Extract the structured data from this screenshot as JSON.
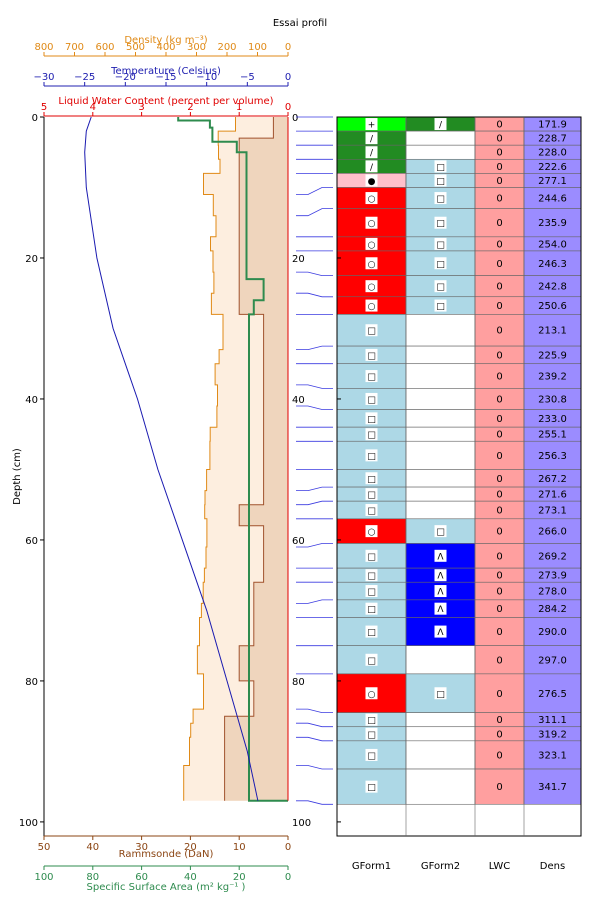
{
  "chart_data": {
    "type": "line",
    "title": "Essai profil",
    "ylabel": "Depth (cm)",
    "ylim": [
      0,
      102
    ],
    "yticks": [
      0,
      20,
      40,
      60,
      80,
      100
    ],
    "colors": {
      "density_axis": "#e08a17",
      "temperature_axis": "#2020b0",
      "lwc_axis": "#e00000",
      "rammsonde_axis": "#8b4513",
      "ssa_axis": "#2e8b4e",
      "rammsonde_fill": "#efd5bd",
      "density_fill": "#fdeedf",
      "density_line": "#e08a17",
      "rammsonde_line": "#a0522d",
      "ssa_line": "#2e8b4e",
      "temp_line": "#1a1ab0",
      "lwc_line": "#e00000",
      "gf1_green": "#00ff00",
      "gf1_darkgreen": "#228b22",
      "gf1_pink": "#ffc0cb",
      "gf1_red": "#ff0000",
      "gf_blue": "#add8e6",
      "gf2_navy": "#0000ff",
      "lwc_cell": "#ff9f9f",
      "dens_cell": "#9b8cff"
    },
    "axes": {
      "density": {
        "label": "Density (kg m⁻³)",
        "range": [
          800,
          0
        ],
        "ticks": [
          "800",
          "700",
          "600",
          "500",
          "400",
          "300",
          "200",
          "100",
          "0"
        ]
      },
      "temperature": {
        "label": "Temperature (Celsius)",
        "range": [
          -30,
          0
        ],
        "ticks": [
          "−30",
          "−25",
          "−20",
          "−15",
          "−10",
          "−5",
          "0"
        ]
      },
      "lwc": {
        "label": "Liquid Water Content (percent per volume)",
        "range": [
          5,
          0
        ],
        "ticks": [
          "5",
          "4",
          "3",
          "2",
          "1",
          "0"
        ]
      },
      "rammsonde": {
        "label": "Rammsonde (DaN)",
        "range": [
          50,
          0
        ],
        "ticks": [
          "50",
          "40",
          "30",
          "20",
          "10",
          "0"
        ]
      },
      "ssa": {
        "label": "Specific Surface Area (m²  kg⁻¹ )",
        "range": [
          100,
          0
        ],
        "ticks": [
          "100",
          "80",
          "60",
          "40",
          "20",
          "0"
        ]
      }
    },
    "rammsonde_profile": [
      {
        "top": 0,
        "bottom": 3,
        "value": 3
      },
      {
        "top": 3,
        "bottom": 28,
        "value": 10
      },
      {
        "top": 28,
        "bottom": 55,
        "value": 5
      },
      {
        "top": 55,
        "bottom": 58,
        "value": 10
      },
      {
        "top": 58,
        "bottom": 66,
        "value": 5
      },
      {
        "top": 66,
        "bottom": 75,
        "value": 7
      },
      {
        "top": 75,
        "bottom": 80,
        "value": 10
      },
      {
        "top": 80,
        "bottom": 85,
        "value": 7
      },
      {
        "top": 85,
        "bottom": 97,
        "value": 13
      }
    ],
    "density_profile": [
      {
        "top": 0,
        "bottom": 2,
        "value": 172
      },
      {
        "top": 2,
        "bottom": 4,
        "value": 229
      },
      {
        "top": 4,
        "bottom": 6,
        "value": 228
      },
      {
        "top": 6,
        "bottom": 8,
        "value": 223
      },
      {
        "top": 8,
        "bottom": 11,
        "value": 277
      },
      {
        "top": 11,
        "bottom": 14,
        "value": 245
      },
      {
        "top": 14,
        "bottom": 17,
        "value": 236
      },
      {
        "top": 17,
        "bottom": 19,
        "value": 254
      },
      {
        "top": 19,
        "bottom": 22,
        "value": 246
      },
      {
        "top": 22,
        "bottom": 25,
        "value": 243
      },
      {
        "top": 25,
        "bottom": 28,
        "value": 251
      },
      {
        "top": 28,
        "bottom": 33,
        "value": 213
      },
      {
        "top": 33,
        "bottom": 35,
        "value": 226
      },
      {
        "top": 35,
        "bottom": 38,
        "value": 239
      },
      {
        "top": 38,
        "bottom": 41,
        "value": 231
      },
      {
        "top": 41,
        "bottom": 44,
        "value": 233
      },
      {
        "top": 44,
        "bottom": 46,
        "value": 255
      },
      {
        "top": 46,
        "bottom": 50,
        "value": 256
      },
      {
        "top": 50,
        "bottom": 53,
        "value": 267
      },
      {
        "top": 53,
        "bottom": 55,
        "value": 272
      },
      {
        "top": 55,
        "bottom": 57,
        "value": 273
      },
      {
        "top": 57,
        "bottom": 61,
        "value": 266
      },
      {
        "top": 61,
        "bottom": 64,
        "value": 269
      },
      {
        "top": 64,
        "bottom": 66,
        "value": 274
      },
      {
        "top": 66,
        "bottom": 69,
        "value": 278
      },
      {
        "top": 69,
        "bottom": 71,
        "value": 284
      },
      {
        "top": 71,
        "bottom": 75,
        "value": 290
      },
      {
        "top": 75,
        "bottom": 79,
        "value": 297
      },
      {
        "top": 79,
        "bottom": 84,
        "value": 277
      },
      {
        "top": 84,
        "bottom": 86,
        "value": 311
      },
      {
        "top": 86,
        "bottom": 88,
        "value": 319
      },
      {
        "top": 88,
        "bottom": 92,
        "value": 323
      },
      {
        "top": 92,
        "bottom": 97,
        "value": 342
      }
    ],
    "ssa_profile": [
      {
        "top": 0,
        "bottom": 0.5,
        "value": 45
      },
      {
        "top": 0.5,
        "bottom": 1.5,
        "value": 32
      },
      {
        "top": 1.5,
        "bottom": 3.5,
        "value": 31
      },
      {
        "top": 3.5,
        "bottom": 5,
        "value": 21
      },
      {
        "top": 5,
        "bottom": 23,
        "value": 17
      },
      {
        "top": 23,
        "bottom": 26,
        "value": 10
      },
      {
        "top": 26,
        "bottom": 28,
        "value": 14
      },
      {
        "top": 28,
        "bottom": 97,
        "value": 16
      }
    ],
    "temperature_profile": [
      {
        "depth": 0,
        "value": -24.2
      },
      {
        "depth": 2,
        "value": -24.8
      },
      {
        "depth": 5,
        "value": -25.0
      },
      {
        "depth": 10,
        "value": -24.8
      },
      {
        "depth": 20,
        "value": -23.5
      },
      {
        "depth": 30,
        "value": -21.5
      },
      {
        "depth": 40,
        "value": -18.5
      },
      {
        "depth": 50,
        "value": -16.0
      },
      {
        "depth": 60,
        "value": -13.0
      },
      {
        "depth": 70,
        "value": -10.0
      },
      {
        "depth": 80,
        "value": -7.5
      },
      {
        "depth": 90,
        "value": -5.0
      },
      {
        "depth": 97,
        "value": -3.7
      }
    ],
    "lwc_profile": [
      {
        "top": 0,
        "bottom": 97,
        "value": 0
      }
    ],
    "table": {
      "headers": [
        "GForm1",
        "GForm2",
        "LWC",
        "Dens"
      ],
      "depth_ticks": [
        "0",
        "20",
        "40",
        "60",
        "80",
        "100"
      ],
      "rows": [
        {
          "top": 0,
          "bottom": 2,
          "gf1": "+",
          "gf1_color": "gf1_green",
          "gf2": "/",
          "gf2_color": "gf1_darkgreen",
          "lwc": "0",
          "dens": "171.9"
        },
        {
          "top": 2,
          "bottom": 4,
          "gf1": "/",
          "gf1_color": "gf1_darkgreen",
          "gf2": "",
          "gf2_color": "white",
          "lwc": "0",
          "dens": "228.7"
        },
        {
          "top": 4,
          "bottom": 6,
          "gf1": "/",
          "gf1_color": "gf1_darkgreen",
          "gf2": "",
          "gf2_color": "white",
          "lwc": "0",
          "dens": "228.0"
        },
        {
          "top": 6,
          "bottom": 8,
          "gf1": "/",
          "gf1_color": "gf1_darkgreen",
          "gf2": "□",
          "gf2_color": "gf_blue",
          "lwc": "0",
          "dens": "222.6"
        },
        {
          "top": 8,
          "bottom": 10,
          "gf1": "●",
          "gf1_color": "gf1_pink",
          "gf2": "□",
          "gf2_color": "gf_blue",
          "lwc": "0",
          "dens": "277.1"
        },
        {
          "top": 10,
          "bottom": 13,
          "gf1": "○",
          "gf1_color": "gf1_red",
          "gf2": "□",
          "gf2_color": "gf_blue",
          "lwc": "0",
          "dens": "244.6"
        },
        {
          "top": 13,
          "bottom": 17,
          "gf1": "○",
          "gf1_color": "gf1_red",
          "gf2": "□",
          "gf2_color": "gf_blue",
          "lwc": "0",
          "dens": "235.9"
        },
        {
          "top": 17,
          "bottom": 19,
          "gf1": "○",
          "gf1_color": "gf1_red",
          "gf2": "□",
          "gf2_color": "gf_blue",
          "lwc": "0",
          "dens": "254.0"
        },
        {
          "top": 19,
          "bottom": 22.5,
          "gf1": "○",
          "gf1_color": "gf1_red",
          "gf2": "□",
          "gf2_color": "gf_blue",
          "lwc": "0",
          "dens": "246.3"
        },
        {
          "top": 22.5,
          "bottom": 25.5,
          "gf1": "○",
          "gf1_color": "gf1_red",
          "gf2": "□",
          "gf2_color": "gf_blue",
          "lwc": "0",
          "dens": "242.8"
        },
        {
          "top": 25.5,
          "bottom": 28,
          "gf1": "○",
          "gf1_color": "gf1_red",
          "gf2": "□",
          "gf2_color": "gf_blue",
          "lwc": "0",
          "dens": "250.6"
        },
        {
          "top": 28,
          "bottom": 32.5,
          "gf1": "□",
          "gf1_color": "gf_blue",
          "gf2": "",
          "gf2_color": "white",
          "lwc": "0",
          "dens": "213.1"
        },
        {
          "top": 32.5,
          "bottom": 35,
          "gf1": "□",
          "gf1_color": "gf_blue",
          "gf2": "",
          "gf2_color": "white",
          "lwc": "0",
          "dens": "225.9"
        },
        {
          "top": 35,
          "bottom": 38.5,
          "gf1": "□",
          "gf1_color": "gf_blue",
          "gf2": "",
          "gf2_color": "white",
          "lwc": "0",
          "dens": "239.2"
        },
        {
          "top": 38.5,
          "bottom": 41.5,
          "gf1": "□",
          "gf1_color": "gf_blue",
          "gf2": "",
          "gf2_color": "white",
          "lwc": "0",
          "dens": "230.8"
        },
        {
          "top": 41.5,
          "bottom": 44,
          "gf1": "□",
          "gf1_color": "gf_blue",
          "gf2": "",
          "gf2_color": "white",
          "lwc": "0",
          "dens": "233.0"
        },
        {
          "top": 44,
          "bottom": 46,
          "gf1": "□",
          "gf1_color": "gf_blue",
          "gf2": "",
          "gf2_color": "white",
          "lwc": "0",
          "dens": "255.1"
        },
        {
          "top": 46,
          "bottom": 50,
          "gf1": "□",
          "gf1_color": "gf_blue",
          "gf2": "",
          "gf2_color": "white",
          "lwc": "0",
          "dens": "256.3"
        },
        {
          "top": 50,
          "bottom": 52.5,
          "gf1": "□",
          "gf1_color": "gf_blue",
          "gf2": "",
          "gf2_color": "white",
          "lwc": "0",
          "dens": "267.2"
        },
        {
          "top": 52.5,
          "bottom": 54.5,
          "gf1": "□",
          "gf1_color": "gf_blue",
          "gf2": "",
          "gf2_color": "white",
          "lwc": "0",
          "dens": "271.6"
        },
        {
          "top": 54.5,
          "bottom": 57,
          "gf1": "□",
          "gf1_color": "gf_blue",
          "gf2": "",
          "gf2_color": "white",
          "lwc": "0",
          "dens": "273.1"
        },
        {
          "top": 57,
          "bottom": 60.5,
          "gf1": "○",
          "gf1_color": "gf1_red",
          "gf2": "□",
          "gf2_color": "gf_blue",
          "lwc": "0",
          "dens": "266.0"
        },
        {
          "top": 60.5,
          "bottom": 64,
          "gf1": "□",
          "gf1_color": "gf_blue",
          "gf2": "Λ",
          "gf2_color": "gf2_navy",
          "lwc": "0",
          "dens": "269.2"
        },
        {
          "top": 64,
          "bottom": 66,
          "gf1": "□",
          "gf1_color": "gf_blue",
          "gf2": "Λ",
          "gf2_color": "gf2_navy",
          "lwc": "0",
          "dens": "273.9"
        },
        {
          "top": 66,
          "bottom": 68.5,
          "gf1": "□",
          "gf1_color": "gf_blue",
          "gf2": "Λ",
          "gf2_color": "gf2_navy",
          "lwc": "0",
          "dens": "278.0"
        },
        {
          "top": 68.5,
          "bottom": 71,
          "gf1": "□",
          "gf1_color": "gf_blue",
          "gf2": "Λ",
          "gf2_color": "gf2_navy",
          "lwc": "0",
          "dens": "284.2"
        },
        {
          "top": 71,
          "bottom": 75,
          "gf1": "□",
          "gf1_color": "gf_blue",
          "gf2": "Λ",
          "gf2_color": "gf2_navy",
          "lwc": "0",
          "dens": "290.0"
        },
        {
          "top": 75,
          "bottom": 79,
          "gf1": "□",
          "gf1_color": "gf_blue",
          "gf2": "",
          "gf2_color": "white",
          "lwc": "0",
          "dens": "297.0"
        },
        {
          "top": 79,
          "bottom": 84.5,
          "gf1": "○",
          "gf1_color": "gf1_red",
          "gf2": "□",
          "gf2_color": "gf_blue",
          "lwc": "0",
          "dens": "276.5"
        },
        {
          "top": 84.5,
          "bottom": 86.5,
          "gf1": "□",
          "gf1_color": "gf_blue",
          "gf2": "",
          "gf2_color": "white",
          "lwc": "0",
          "dens": "311.1"
        },
        {
          "top": 86.5,
          "bottom": 88.5,
          "gf1": "□",
          "gf1_color": "gf_blue",
          "gf2": "",
          "gf2_color": "white",
          "lwc": "0",
          "dens": "319.2"
        },
        {
          "top": 88.5,
          "bottom": 92.5,
          "gf1": "□",
          "gf1_color": "gf_blue",
          "gf2": "",
          "gf2_color": "white",
          "lwc": "0",
          "dens": "323.1"
        },
        {
          "top": 92.5,
          "bottom": 97.5,
          "gf1": "□",
          "gf1_color": "gf_blue",
          "gf2": "",
          "gf2_color": "white",
          "lwc": "0",
          "dens": "341.7"
        }
      ]
    }
  }
}
